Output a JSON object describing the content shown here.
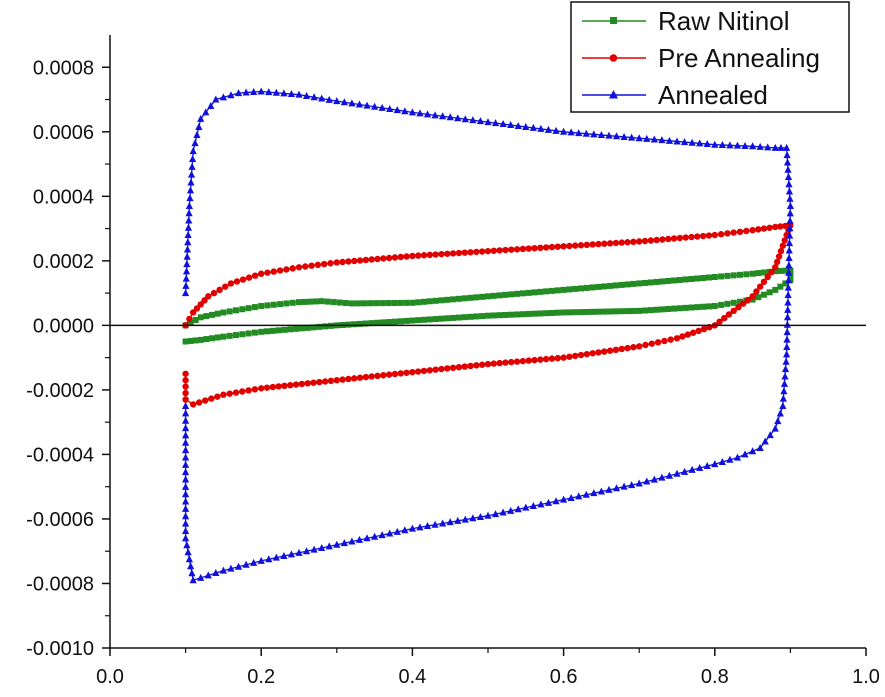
{
  "chart_data": {
    "type": "line",
    "title": "",
    "xlabel": "",
    "ylabel": "",
    "xlim": [
      0.0,
      1.0
    ],
    "ylim": [
      -0.001,
      0.0009
    ],
    "x_ticks": [
      "0.0",
      "0.2",
      "0.4",
      "0.6",
      "0.8",
      "1.0"
    ],
    "x_tick_values": [
      0.0,
      0.2,
      0.4,
      0.6,
      0.8,
      1.0
    ],
    "y_ticks": [
      "0.0008",
      "0.0006",
      "0.0004",
      "0.0002",
      "0.0000",
      "-0.0002",
      "-0.0004",
      "-0.0006",
      "-0.0008",
      "-0.0010"
    ],
    "y_tick_values": [
      0.0008,
      0.0006,
      0.0004,
      0.0002,
      0.0,
      -0.0002,
      -0.0004,
      -0.0006,
      -0.0008,
      -0.001
    ],
    "zero_line": true,
    "grid": false,
    "legend_position": "top-right",
    "series": [
      {
        "name": "Raw Nitinol",
        "color": "#228b22",
        "marker": "square",
        "x": [
          0.1,
          0.12,
          0.15,
          0.2,
          0.25,
          0.28,
          0.32,
          0.4,
          0.5,
          0.6,
          0.7,
          0.8,
          0.85,
          0.88,
          0.9,
          0.9,
          0.88,
          0.85,
          0.8,
          0.7,
          0.6,
          0.5,
          0.4,
          0.3,
          0.2,
          0.15,
          0.12,
          0.1
        ],
        "y": [
          0.0,
          2.5e-05,
          4e-05,
          6e-05,
          7.2e-05,
          7.5e-05,
          6.8e-05,
          7e-05,
          9e-05,
          0.00011,
          0.00013,
          0.00015,
          0.00016,
          0.000168,
          0.00017,
          0.00014,
          0.00011,
          8e-05,
          6e-05,
          4.5e-05,
          4e-05,
          3e-05,
          1.5e-05,
          0.0,
          -2e-05,
          -3.5e-05,
          -4.5e-05,
          -5e-05
        ]
      },
      {
        "name": "Pre Annealing",
        "color": "#e00000",
        "marker": "circle",
        "x": [
          0.1,
          0.11,
          0.13,
          0.16,
          0.2,
          0.25,
          0.3,
          0.4,
          0.5,
          0.6,
          0.7,
          0.8,
          0.85,
          0.88,
          0.9,
          0.895,
          0.88,
          0.85,
          0.8,
          0.75,
          0.7,
          0.6,
          0.5,
          0.4,
          0.3,
          0.2,
          0.15,
          0.11,
          0.1,
          0.1
        ],
        "y": [
          0.0,
          4e-05,
          9e-05,
          0.00013,
          0.00016,
          0.00018,
          0.000195,
          0.000215,
          0.00023,
          0.000245,
          0.00026,
          0.00028,
          0.000295,
          0.000305,
          0.00031,
          0.00028,
          0.00018,
          9e-05,
          0.0,
          -4e-05,
          -6.5e-05,
          -0.0001,
          -0.00012,
          -0.000145,
          -0.00017,
          -0.000195,
          -0.000215,
          -0.000245,
          -0.00023,
          -0.00015
        ]
      },
      {
        "name": "Annealed",
        "color": "#1010dd",
        "marker": "triangle",
        "x": [
          0.1,
          0.105,
          0.11,
          0.12,
          0.14,
          0.17,
          0.2,
          0.25,
          0.3,
          0.4,
          0.5,
          0.6,
          0.7,
          0.8,
          0.85,
          0.88,
          0.895,
          0.9,
          0.895,
          0.89,
          0.88,
          0.86,
          0.83,
          0.8,
          0.7,
          0.6,
          0.5,
          0.4,
          0.3,
          0.2,
          0.15,
          0.11,
          0.1,
          0.1
        ],
        "y": [
          0.0001,
          0.00037,
          0.00054,
          0.00064,
          0.0007,
          0.00072,
          0.000725,
          0.000715,
          0.000695,
          0.00066,
          0.00063,
          0.0006,
          0.00058,
          0.00056,
          0.000555,
          0.00055,
          0.00055,
          0.00037,
          -9e-05,
          -0.00025,
          -0.00032,
          -0.00038,
          -0.00041,
          -0.00043,
          -0.00049,
          -0.00054,
          -0.00059,
          -0.00063,
          -0.00068,
          -0.00073,
          -0.00076,
          -0.00079,
          -0.00066,
          -0.00025
        ]
      }
    ]
  }
}
